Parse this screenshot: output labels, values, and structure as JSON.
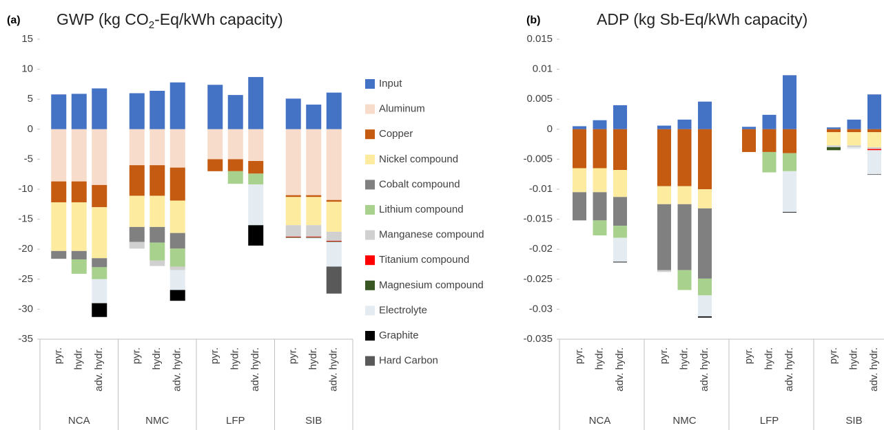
{
  "chart_data": [
    {
      "type": "bar",
      "stacked": true,
      "panel_label": "(a)",
      "title": [
        "GWP (kg CO",
        "2",
        "-Eq/kWh capacity)"
      ],
      "groups": [
        "NCA",
        "NMC",
        "LFP",
        "SIB"
      ],
      "categories": [
        "pyr.",
        "hydr.",
        "adv. hydr.",
        "pyr.",
        "hydr.",
        "adv. hydr.",
        "pyr.",
        "hydr.",
        "adv. hydr.",
        "pyr.",
        "hydr.",
        "adv. hydr."
      ],
      "ylim": [
        -35,
        15
      ],
      "yticks": [
        15,
        10,
        5,
        0,
        -5,
        -10,
        -15,
        -20,
        -25,
        -30,
        -35
      ],
      "series": [
        {
          "name": "Input",
          "color": "#4472c4",
          "values": [
            5.8,
            5.9,
            6.8,
            6.0,
            6.4,
            7.8,
            7.4,
            5.7,
            8.7,
            5.1,
            4.1,
            6.1
          ]
        },
        {
          "name": "Aluminum",
          "color": "#f8dccb",
          "values": [
            -8.7,
            -8.7,
            -9.3,
            -6.0,
            -6.0,
            -6.4,
            -5.0,
            -5.0,
            -5.3,
            -11.0,
            -11.0,
            -11.8
          ]
        },
        {
          "name": "Copper",
          "color": "#c55a11",
          "values": [
            -3.5,
            -3.5,
            -3.7,
            -5.1,
            -5.1,
            -5.5,
            -2.0,
            -2.0,
            -2.1,
            -0.3,
            -0.3,
            -0.3
          ]
        },
        {
          "name": "Nickel compound",
          "color": "#fdeca0",
          "values": [
            -8.1,
            -8.1,
            -8.5,
            -5.2,
            -5.2,
            -5.4,
            0,
            0,
            0,
            -4.7,
            -4.7,
            -5.0
          ]
        },
        {
          "name": "Cobalt compound",
          "color": "#808080",
          "values": [
            -1.3,
            -1.4,
            -1.5,
            -2.5,
            -2.6,
            -2.6,
            0,
            0,
            0,
            0,
            0,
            0
          ]
        },
        {
          "name": "Lithium compound",
          "color": "#a9d18e",
          "values": [
            0,
            -2.4,
            -2.0,
            0,
            -3.0,
            -3.0,
            0,
            -2.1,
            -1.8,
            0,
            0,
            0
          ]
        },
        {
          "name": "Manganese compound",
          "color": "#d0d0d0",
          "values": [
            0,
            0,
            0,
            -1.1,
            -0.9,
            -0.6,
            0,
            0,
            0,
            -1.9,
            -1.9,
            -1.5
          ]
        },
        {
          "name": "Titanium compound",
          "color": "#ff0000",
          "values": [
            0,
            0,
            0,
            0,
            0,
            0,
            0,
            0,
            0,
            -0.1,
            -0.1,
            -0.1
          ]
        },
        {
          "name": "Magnesium compound",
          "color": "#385723",
          "values": [
            0,
            0,
            0,
            0,
            0,
            0,
            0,
            0,
            0,
            -0.1,
            -0.1,
            -0.1
          ]
        },
        {
          "name": "Electrolyte",
          "color": "#e4ecf2",
          "values": [
            0,
            0,
            -4.0,
            0,
            0,
            -3.3,
            0,
            0,
            -6.8,
            0,
            -0.2,
            -4.1
          ]
        },
        {
          "name": "Graphite",
          "color": "#000000",
          "values": [
            0,
            0,
            -2.3,
            0,
            0,
            -1.8,
            0,
            0,
            -3.4,
            0,
            0,
            0
          ]
        },
        {
          "name": "Hard Carbon",
          "color": "#595959",
          "values": [
            0,
            0,
            0,
            0,
            0,
            0,
            0,
            0,
            0,
            0,
            0,
            -4.5
          ]
        }
      ]
    },
    {
      "type": "bar",
      "stacked": true,
      "panel_label": "(b)",
      "title": "ADP (kg Sb-Eq/kWh capacity)",
      "groups": [
        "NCA",
        "NMC",
        "LFP",
        "SIB"
      ],
      "categories": [
        "pyr.",
        "hydr.",
        "adv. hydr.",
        "pyr.",
        "hydr.",
        "adv. hydr.",
        "pyr.",
        "hydr.",
        "adv. hydr.",
        "pyr.",
        "hydr.",
        "adv. hydr."
      ],
      "ylim": [
        -0.035,
        0.015
      ],
      "yticks": [
        0.015,
        0.01,
        0.005,
        0,
        -0.005,
        -0.01,
        -0.015,
        -0.02,
        -0.025,
        -0.03,
        -0.035
      ],
      "series": [
        {
          "values": [
            0.0005,
            0.0015,
            0.004,
            0.0006,
            0.0016,
            0.0046,
            0.0004,
            0.0024,
            0.009,
            0.0003,
            0.0016,
            0.0058
          ]
        },
        {
          "values": [
            0,
            0,
            0,
            0,
            0,
            0,
            0,
            0,
            0,
            0,
            0,
            0
          ]
        },
        {
          "values": [
            -0.0065,
            -0.0065,
            -0.0068,
            -0.0095,
            -0.0095,
            -0.01,
            -0.0038,
            -0.0038,
            -0.004,
            -0.0005,
            -0.0005,
            -0.0005
          ]
        },
        {
          "values": [
            -0.004,
            -0.004,
            -0.0045,
            -0.003,
            -0.003,
            -0.0032,
            0,
            0,
            0,
            -0.0022,
            -0.0022,
            -0.0025
          ]
        },
        {
          "values": [
            -0.0047,
            -0.0047,
            -0.0048,
            -0.011,
            -0.011,
            -0.0117,
            0,
            0,
            0,
            0,
            0,
            0
          ]
        },
        {
          "values": [
            0,
            -0.0025,
            -0.002,
            0,
            -0.0033,
            -0.0028,
            0,
            -0.0034,
            -0.003,
            0,
            0,
            0
          ]
        },
        {
          "values": [
            0,
            0,
            0,
            -0.0003,
            0,
            0,
            0,
            0,
            0,
            -0.0003,
            -0.0003,
            -0.0003
          ]
        },
        {
          "values": [
            0,
            0,
            0,
            0,
            0,
            0,
            0,
            0,
            0,
            0,
            0,
            -0.0002
          ]
        },
        {
          "values": [
            0,
            0,
            0,
            0,
            0,
            0,
            0,
            0,
            0,
            -0.0005,
            0,
            0
          ]
        },
        {
          "values": [
            0,
            0,
            -0.004,
            0,
            0,
            -0.0035,
            0,
            0,
            -0.0068,
            0,
            -0.0003,
            -0.004
          ]
        },
        {
          "values": [
            0,
            0,
            -0.0001,
            0,
            0,
            -0.0002,
            0,
            0,
            -0.0001,
            0,
            0,
            0
          ]
        },
        {
          "values": [
            0,
            0,
            0,
            0,
            0,
            0,
            0,
            0,
            0,
            0,
            0,
            -0.0001
          ]
        }
      ]
    }
  ]
}
